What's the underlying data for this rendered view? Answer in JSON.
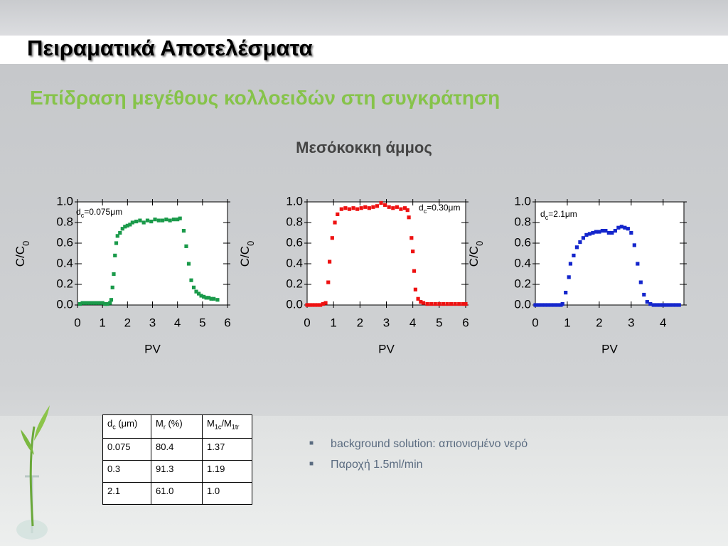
{
  "title": "Πειραματικά Αποτελέσματα",
  "subtitle": "Επίδραση μεγέθους κολλοειδών στη συγκράτηση",
  "heading": "Μεσόκοκκη άμμος",
  "chart_data": [
    {
      "type": "scatter",
      "color": "#1a9a4a",
      "annotation": [
        "d",
        "c",
        "=0.075μm"
      ],
      "ylabel": [
        "C/C",
        "0"
      ],
      "xlabel": "PV",
      "xlim": [
        0,
        6
      ],
      "xticks": [
        0,
        1,
        2,
        3,
        4,
        5,
        6
      ],
      "ylim": [
        0,
        1
      ],
      "yticks": [
        {
          "value": 0,
          "label": "0.0"
        },
        {
          "value": 0.2,
          "label": "0.2"
        },
        {
          "value": 0.4,
          "label": "0.4"
        },
        {
          "value": 0.6,
          "label": "0.6"
        },
        {
          "value": 0.8,
          "label": "0.8"
        },
        {
          "value": 1,
          "label": "1.0"
        }
      ],
      "x": [
        0.1,
        0.2,
        0.3,
        0.4,
        0.5,
        0.6,
        0.7,
        0.8,
        0.9,
        1.0,
        1.1,
        1.2,
        1.3,
        1.35,
        1.4,
        1.45,
        1.5,
        1.55,
        1.6,
        1.7,
        1.8,
        1.9,
        2.0,
        2.1,
        2.2,
        2.35,
        2.5,
        2.65,
        2.8,
        2.95,
        3.1,
        3.25,
        3.4,
        3.55,
        3.7,
        3.85,
        4.0,
        4.1,
        4.25,
        4.35,
        4.45,
        4.55,
        4.65,
        4.75,
        4.85,
        4.95,
        5.05,
        5.15,
        5.25,
        5.35,
        5.45,
        5.6
      ],
      "values": [
        0.01,
        0.02,
        0.02,
        0.02,
        0.02,
        0.02,
        0.02,
        0.02,
        0.02,
        0.02,
        0.01,
        0.01,
        0.02,
        0.05,
        0.17,
        0.3,
        0.48,
        0.6,
        0.67,
        0.7,
        0.74,
        0.76,
        0.77,
        0.78,
        0.8,
        0.81,
        0.82,
        0.8,
        0.82,
        0.81,
        0.83,
        0.82,
        0.82,
        0.83,
        0.82,
        0.83,
        0.83,
        0.84,
        0.72,
        0.57,
        0.4,
        0.24,
        0.17,
        0.13,
        0.11,
        0.09,
        0.08,
        0.07,
        0.07,
        0.06,
        0.06,
        0.05
      ]
    },
    {
      "type": "scatter",
      "color": "#ee1111",
      "annotation": [
        "d",
        "c",
        "=0.30μm"
      ],
      "ylabel": [
        "C/C",
        "0"
      ],
      "xlabel": "PV",
      "xlim": [
        0,
        6
      ],
      "xticks": [
        0,
        1,
        2,
        3,
        4,
        5,
        6
      ],
      "ylim": [
        0,
        1
      ],
      "yticks": [
        {
          "value": 0,
          "label": "0.0"
        },
        {
          "value": 0.2,
          "label": "0.2"
        },
        {
          "value": 0.4,
          "label": "0.4"
        },
        {
          "value": 0.6,
          "label": "0.6"
        },
        {
          "value": 0.8,
          "label": "0.8"
        },
        {
          "value": 1,
          "label": "1.0"
        }
      ],
      "x": [
        0,
        0.1,
        0.2,
        0.3,
        0.4,
        0.5,
        0.6,
        0.7,
        0.8,
        0.85,
        0.95,
        1.05,
        1.15,
        1.3,
        1.45,
        1.6,
        1.75,
        1.9,
        2.05,
        2.2,
        2.35,
        2.5,
        2.65,
        2.8,
        2.95,
        3.1,
        3.25,
        3.4,
        3.55,
        3.7,
        3.8,
        3.85,
        3.95,
        4.0,
        4.05,
        4.1,
        4.2,
        4.3,
        4.4,
        4.55,
        4.7,
        4.85,
        5.0,
        5.15,
        5.3,
        5.45,
        5.6,
        5.75,
        5.9,
        6.0
      ],
      "values": [
        0,
        0,
        0,
        0,
        0,
        0,
        0.01,
        0.02,
        0.22,
        0.42,
        0.65,
        0.8,
        0.88,
        0.93,
        0.94,
        0.93,
        0.94,
        0.93,
        0.94,
        0.95,
        0.94,
        0.95,
        0.96,
        0.99,
        0.97,
        0.95,
        0.94,
        0.95,
        0.93,
        0.94,
        0.92,
        0.85,
        0.65,
        0.52,
        0.33,
        0.15,
        0.06,
        0.03,
        0.02,
        0.01,
        0.01,
        0.01,
        0.01,
        0.01,
        0.01,
        0.01,
        0.01,
        0.01,
        0.01,
        0.01
      ]
    },
    {
      "type": "scatter",
      "color": "#1426cc",
      "annotation": [
        "d",
        "c",
        "=2.1μm"
      ],
      "ylabel": [
        "C/C",
        "0"
      ],
      "xlabel": "PV",
      "xlim": [
        0,
        4.65
      ],
      "xticks": [
        0,
        1,
        2,
        3,
        4
      ],
      "ylim": [
        0,
        1
      ],
      "yticks": [
        {
          "value": 0,
          "label": "0.0"
        },
        {
          "value": 0.2,
          "label": "0.2"
        },
        {
          "value": 0.4,
          "label": "0.4"
        },
        {
          "value": 0.6,
          "label": "0.6"
        },
        {
          "value": 0.8,
          "label": "0.8"
        },
        {
          "value": 1,
          "label": "1.0"
        }
      ],
      "x": [
        0,
        0.1,
        0.2,
        0.3,
        0.4,
        0.5,
        0.6,
        0.7,
        0.8,
        0.85,
        0.95,
        1.05,
        1.1,
        1.2,
        1.3,
        1.4,
        1.5,
        1.6,
        1.7,
        1.8,
        1.9,
        2.0,
        2.1,
        2.2,
        2.3,
        2.4,
        2.5,
        2.6,
        2.7,
        2.8,
        2.9,
        3.0,
        3.1,
        3.2,
        3.3,
        3.4,
        3.5,
        3.6,
        3.7,
        3.8,
        3.9,
        4.0,
        4.1,
        4.2,
        4.3,
        4.4,
        4.5
      ],
      "values": [
        0,
        0,
        0,
        0,
        0,
        0,
        0,
        0,
        0,
        0.01,
        0.12,
        0.27,
        0.4,
        0.48,
        0.56,
        0.61,
        0.65,
        0.68,
        0.69,
        0.7,
        0.71,
        0.71,
        0.72,
        0.72,
        0.7,
        0.7,
        0.72,
        0.75,
        0.76,
        0.75,
        0.74,
        0.7,
        0.58,
        0.4,
        0.22,
        0.1,
        0.03,
        0.01,
        0,
        0,
        0,
        0,
        0,
        0,
        0,
        0,
        0
      ]
    }
  ],
  "table": {
    "header": [
      [
        "d",
        "c",
        "  (μm)"
      ],
      [
        "M",
        "r",
        " (%)"
      ],
      [
        "M",
        "1c",
        "/M",
        "1tr"
      ]
    ],
    "rows": [
      [
        "0.075",
        "80.4",
        "1.37"
      ],
      [
        "0.3",
        "91.3",
        "1.19"
      ],
      [
        "2.1",
        "61.0",
        "1.0"
      ]
    ]
  },
  "bullets": [
    "background solution: απιονισμένο νερό",
    "Παροχή 1.5ml/min"
  ]
}
